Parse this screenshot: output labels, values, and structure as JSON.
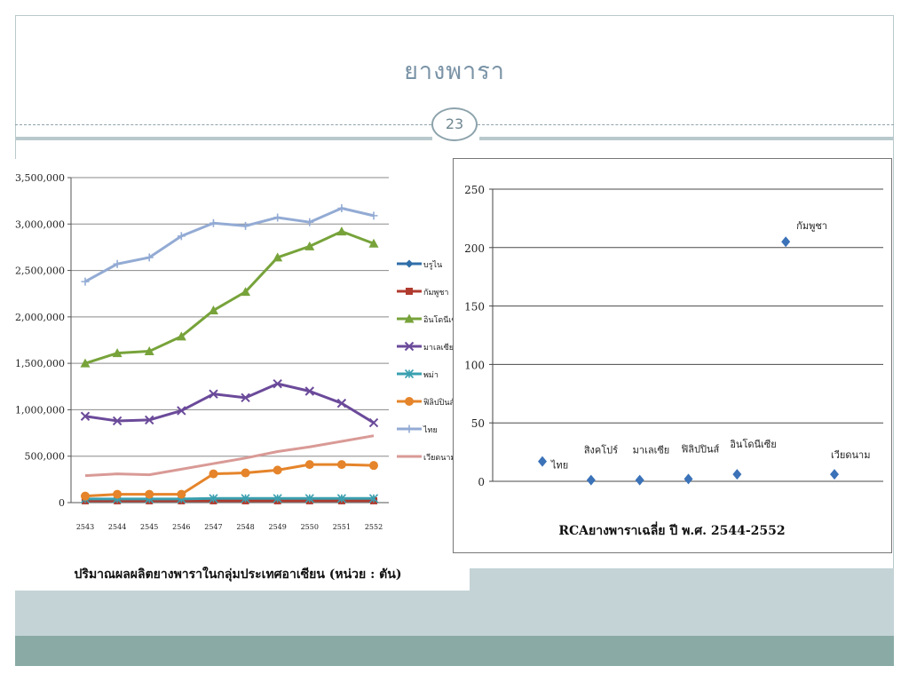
{
  "slide": {
    "title": "ยางพารา",
    "page_number": "23"
  },
  "colors": {
    "frame": "#b9c9cc",
    "title": "#7a93a6",
    "band_light": "#c4d3d6",
    "band_dark": "#8aaaa6"
  },
  "chart_data": [
    {
      "type": "line",
      "title": "",
      "caption": "ปริมาณผลผลิตยางพาราในกลุ่มประเทศอาเซียน (หน่วย : ตัน)",
      "categories": [
        "2543",
        "2544",
        "2545",
        "2546",
        "2547",
        "2548",
        "2549",
        "2550",
        "2551",
        "2552"
      ],
      "yticks": [
        "0",
        "500,000",
        "1,000,000",
        "1,500,000",
        "2,000,000",
        "2,500,000",
        "3,000,000",
        "3,500,000"
      ],
      "ylim": [
        0,
        3500000
      ],
      "grid": true,
      "legend_position": "right",
      "series": [
        {
          "name": "บรูไน",
          "color": "#2f6ea8",
          "marker": "diamond",
          "values": [
            30000,
            30000,
            30000,
            30000,
            30000,
            30000,
            30000,
            30000,
            30000,
            30000
          ]
        },
        {
          "name": "กัมพูชา",
          "color": "#b03a2e",
          "marker": "square",
          "values": [
            20000,
            20000,
            20000,
            20000,
            20000,
            20000,
            20000,
            20000,
            20000,
            20000
          ]
        },
        {
          "name": "อินโดนีเซีย",
          "color": "#77a33a",
          "marker": "triangle",
          "values": [
            1500000,
            1610000,
            1630000,
            1790000,
            2070000,
            2270000,
            2640000,
            2760000,
            2920000,
            2790000
          ]
        },
        {
          "name": "มาเลเซีย",
          "color": "#6b4a9a",
          "marker": "x",
          "values": [
            930000,
            880000,
            890000,
            990000,
            1170000,
            1130000,
            1280000,
            1200000,
            1070000,
            860000
          ]
        },
        {
          "name": "พม่า",
          "color": "#3aa0b0",
          "marker": "star",
          "values": [
            40000,
            40000,
            40000,
            40000,
            45000,
            45000,
            45000,
            45000,
            45000,
            45000
          ]
        },
        {
          "name": "ฟิลิปปินส์",
          "color": "#e5842a",
          "marker": "circle",
          "values": [
            70000,
            90000,
            90000,
            90000,
            310000,
            320000,
            350000,
            410000,
            410000,
            400000
          ]
        },
        {
          "name": "ไทย",
          "color": "#93abd4",
          "marker": "plus",
          "values": [
            2380000,
            2570000,
            2640000,
            2870000,
            3010000,
            2980000,
            3070000,
            3020000,
            3170000,
            3090000
          ]
        },
        {
          "name": "เวียดนาม",
          "color": "#d99a96",
          "marker": "none",
          "values": [
            290000,
            310000,
            300000,
            360000,
            420000,
            480000,
            550000,
            600000,
            660000,
            720000
          ]
        }
      ]
    },
    {
      "type": "scatter",
      "title": "RCAยางพาราเฉลี่ย ปี พ.ศ. 2544-2552",
      "yticks": [
        "0",
        "50",
        "100",
        "150",
        "200",
        "250"
      ],
      "ylim": [
        0,
        250
      ],
      "grid": true,
      "color": "#3b72b8",
      "points": [
        {
          "label": "ไทย",
          "x": 1,
          "y": 17
        },
        {
          "label": "สิงคโปร์",
          "x": 2,
          "y": 1
        },
        {
          "label": "มาเลเซีย",
          "x": 3,
          "y": 1
        },
        {
          "label": "ฟิลิปปินส์",
          "x": 4,
          "y": 2
        },
        {
          "label": "อินโดนีเซีย",
          "x": 5,
          "y": 6
        },
        {
          "label": "กัมพูชา",
          "x": 6,
          "y": 205
        },
        {
          "label": "เวียดนาม",
          "x": 7,
          "y": 6
        }
      ]
    }
  ]
}
